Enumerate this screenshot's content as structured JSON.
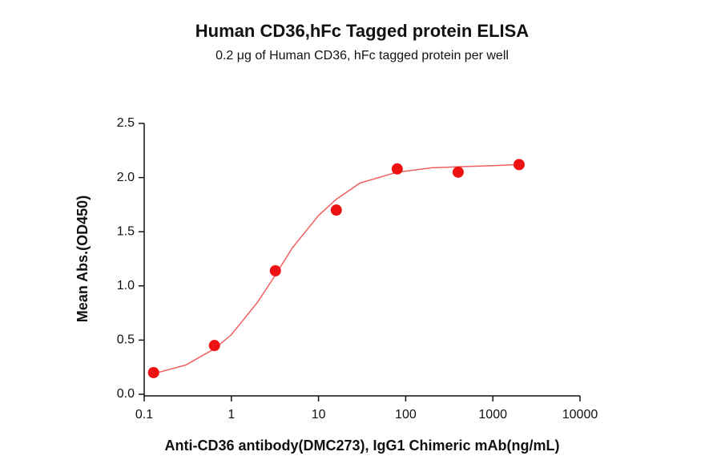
{
  "chart_data": {
    "type": "scatter",
    "title": "Human CD36,hFc Tagged protein ELISA",
    "subtitle": "0.2 μg of Human CD36, hFc tagged protein per well",
    "xlabel": "Anti-CD36 antibody(DMC273), IgG1 Chimeric mAb(ng/mL)",
    "ylabel": "Mean Abs.(OD450)",
    "xscale": "log",
    "xlim": [
      0.1,
      10000
    ],
    "xticks": [
      0.1,
      1,
      10,
      100,
      1000,
      10000
    ],
    "ylim": [
      0,
      2.5
    ],
    "yticks": [
      {
        "value": 0,
        "label": "0.0"
      },
      0.5,
      {
        "value": 1,
        "label": "1.0"
      },
      1.5,
      {
        "value": 2,
        "label": "2.0"
      },
      2.5
    ],
    "series": [
      {
        "color": "#ee1111",
        "marker": "circle",
        "x": [
          0.128,
          0.64,
          3.2,
          16,
          80,
          400,
          2000
        ],
        "values": [
          0.2,
          0.45,
          1.14,
          1.7,
          2.08,
          2.05,
          2.12
        ]
      },
      {
        "color": "#f06060",
        "marker": "line",
        "x": [
          0.128,
          0.3,
          0.64,
          1,
          2,
          3.2,
          5,
          10,
          16,
          30,
          80,
          200,
          400,
          1000,
          2000
        ],
        "values": [
          0.19,
          0.27,
          0.42,
          0.55,
          0.85,
          1.1,
          1.35,
          1.65,
          1.8,
          1.95,
          2.05,
          2.09,
          2.1,
          2.11,
          2.12
        ]
      }
    ]
  }
}
